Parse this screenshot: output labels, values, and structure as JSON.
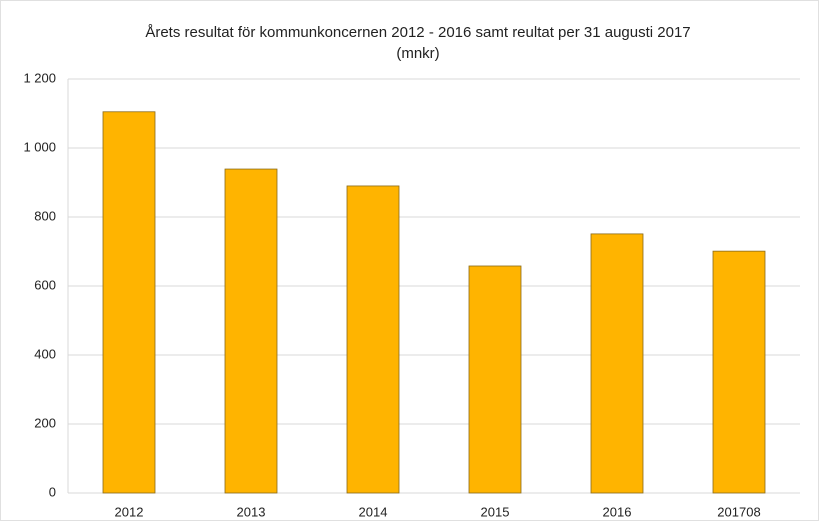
{
  "chart_data": {
    "type": "bar",
    "title": "Årets resultat för kommunkoncernen  2012 - 2016 samt reultat per 31 augusti 2017",
    "subtitle": "(mnkr)",
    "categories": [
      "2012",
      "2013",
      "2014",
      "2015",
      "2016",
      "201708"
    ],
    "values": [
      1105,
      939,
      890,
      658,
      751,
      701
    ],
    "color": "#ffb400",
    "ylim": [
      0,
      1200
    ],
    "yticks": [
      0,
      200,
      400,
      600,
      800,
      {
        "value": 1000,
        "label": "1 000"
      },
      {
        "value": 1200,
        "label": "1 200"
      }
    ],
    "grid": true
  }
}
